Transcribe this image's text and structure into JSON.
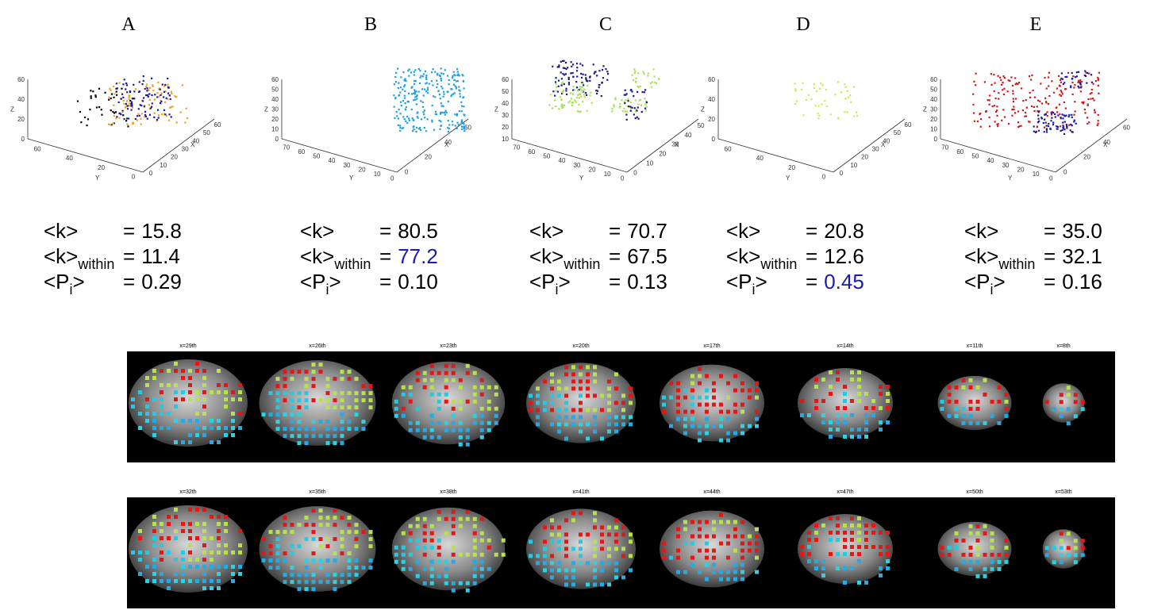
{
  "panels": [
    {
      "label": "A",
      "z_label": "Z",
      "y_label": "Y",
      "x_label": "X",
      "z_ticks": [
        "60",
        "40",
        "20",
        "0"
      ],
      "y_ticks": [
        "60",
        "40",
        "20",
        "0"
      ],
      "x_ticks": [
        "0",
        "10",
        "20",
        "30",
        "40",
        "50",
        "60"
      ],
      "stats": [
        {
          "symbol": "<k>",
          "relation": "=",
          "value": "15.8"
        },
        {
          "symbol": "<k>",
          "subscript": "within",
          "relation": "=",
          "value": "11.4"
        },
        {
          "symbol": "<P",
          "subscript": "i",
          "symbol_end": ">",
          "relation": "=",
          "value": "0.29"
        }
      ]
    },
    {
      "label": "B",
      "z_label": "Z",
      "y_label": "Y",
      "x_label": "X",
      "z_ticks": [
        "60",
        "50",
        "40",
        "30",
        "20",
        "10",
        "0"
      ],
      "y_ticks": [
        "70",
        "60",
        "50",
        "40",
        "30",
        "20",
        "10",
        "0"
      ],
      "x_ticks": [
        "0",
        "20",
        "40",
        "60"
      ],
      "stats": [
        {
          "symbol": "<k>",
          "relation": "=",
          "value": "80.5"
        },
        {
          "symbol": "<k>",
          "subscript": "within",
          "relation": "=",
          "value": "77.2",
          "highlighted": true
        },
        {
          "symbol": "<P",
          "subscript": "i",
          "symbol_end": ">",
          "relation": "=",
          "value": "0.10"
        }
      ]
    },
    {
      "label": "C",
      "z_label": "Z",
      "y_label": "Y",
      "x_label": "X",
      "z_ticks": [
        "60",
        "50",
        "40",
        "30",
        "20",
        "10"
      ],
      "y_ticks": [
        "70",
        "60",
        "50",
        "40",
        "30",
        "20",
        "10",
        "0"
      ],
      "x_ticks": [
        "0",
        "10",
        "20",
        "30",
        "40",
        "50"
      ],
      "stats": [
        {
          "symbol": "<k>",
          "relation": "=",
          "value": "70.7"
        },
        {
          "symbol": "<k>",
          "subscript": "within",
          "relation": "=",
          "value": "67.5"
        },
        {
          "symbol": "<P",
          "subscript": "i",
          "symbol_end": ">",
          "relation": "=",
          "value": "0.13"
        }
      ]
    },
    {
      "label": "D",
      "z_label": "Z",
      "y_label": "Y",
      "x_label": "X",
      "z_ticks": [
        "60",
        "40",
        "20",
        "0"
      ],
      "y_ticks": [
        "60",
        "40",
        "20",
        "0"
      ],
      "x_ticks": [
        "0",
        "10",
        "20",
        "30",
        "40",
        "50",
        "60"
      ],
      "stats": [
        {
          "symbol": "<k>",
          "relation": "=",
          "value": "20.8"
        },
        {
          "symbol": "<k>",
          "subscript": "within",
          "relation": "=",
          "value": "12.6"
        },
        {
          "symbol": "<P",
          "subscript": "i",
          "symbol_end": ">",
          "relation": "=",
          "value": "0.45",
          "highlighted": true
        }
      ]
    },
    {
      "label": "E",
      "z_label": "Z",
      "y_label": "Y",
      "x_label": "X",
      "z_ticks": [
        "60",
        "50",
        "40",
        "30",
        "20",
        "10",
        "0"
      ],
      "y_ticks": [
        "70",
        "60",
        "50",
        "40",
        "30",
        "20",
        "10",
        "0"
      ],
      "x_ticks": [
        "0",
        "20",
        "40",
        "60"
      ],
      "stats": [
        {
          "symbol": "<k>",
          "relation": "=",
          "value": "35.0"
        },
        {
          "symbol": "<k>",
          "subscript": "within",
          "relation": "=",
          "value": "32.1"
        },
        {
          "symbol": "<P",
          "subscript": "i",
          "symbol_end": ">",
          "relation": "=",
          "value": "0.16"
        }
      ]
    }
  ],
  "slice_rows": [
    {
      "labels": [
        "x=29th",
        "x=26th",
        "x=23th",
        "x=20th",
        "x=17th",
        "x=14th",
        "x=11th",
        "x=8th"
      ]
    },
    {
      "labels": [
        "x=32th",
        "x=35th",
        "x=38th",
        "x=41th",
        "x=44th",
        "x=47th",
        "x=50th",
        "x=53th"
      ]
    }
  ]
}
